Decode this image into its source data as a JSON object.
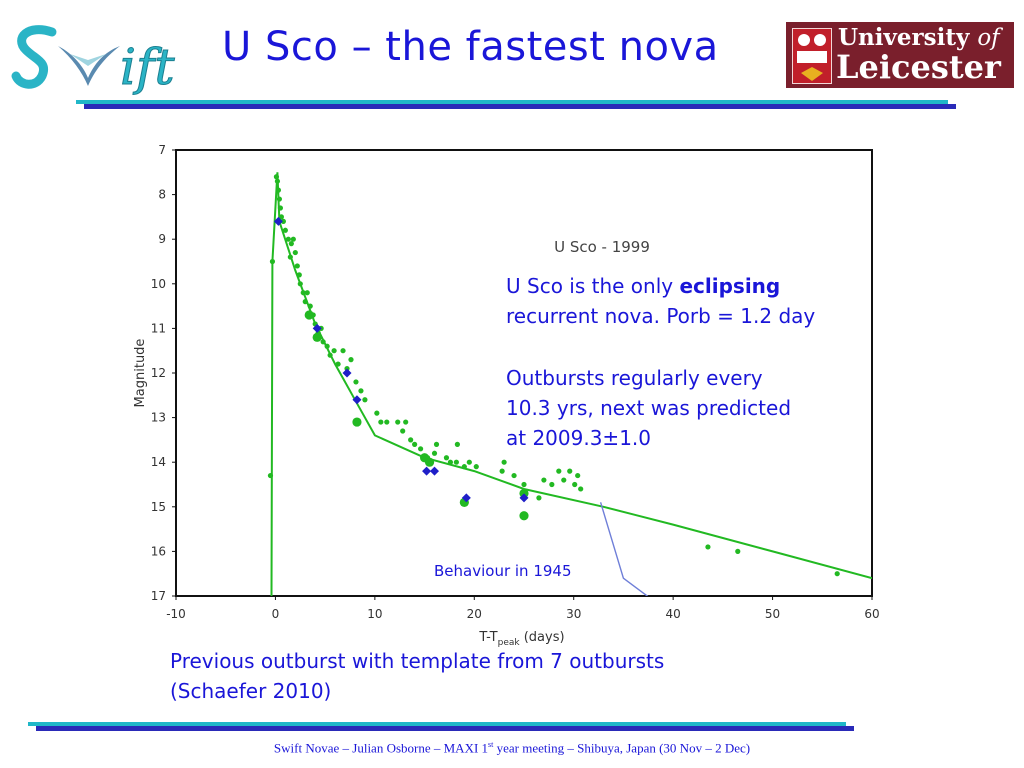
{
  "header": {
    "title": "U Sco – the fastest nova",
    "swift_logo_text": "Swift",
    "university_logo": {
      "line1": "University",
      "line1_of": "of",
      "line2": "Leicester"
    }
  },
  "info": {
    "para1_pre": "U Sco is the only ",
    "para1_bold": "eclipsing",
    "para1_post": "recurrent nova. Porb = 1.2 day",
    "para2_line1": "Outbursts regularly every",
    "para2_line2": "10.3 yrs, next was predicted",
    "para2_line3": "at 2009.3±1.0"
  },
  "caption": {
    "line1": "Previous outburst with template from 7 outbursts",
    "line2": "(Schaefer 2010)"
  },
  "footer": {
    "text_pre": "Swift Novae – Julian Osborne – MAXI 1",
    "text_sup": "st",
    "text_post": " year meeting – Shibuya, Japan (30 Nov – 2 Dec)"
  },
  "colors": {
    "text_blue": "#1a16d8",
    "green": "#22b922",
    "diamond_blue": "#1f1fc8",
    "line_1945": "#6f7fd8",
    "rule_cyan": "#20b7c8",
    "rule_blue": "#2a2ab8"
  },
  "chart_data": {
    "type": "scatter",
    "title": "U Sco - 1999",
    "xlabel": "T-T",
    "xlabel_sub": "peak",
    "xlabel_suffix": " (days)",
    "ylabel": "Magnitude",
    "xlim": [
      -10,
      60
    ],
    "ylim": [
      17,
      7
    ],
    "y_inverted": true,
    "x_ticks": [
      -10,
      0,
      10,
      20,
      30,
      40,
      50,
      60
    ],
    "y_ticks": [
      7,
      8,
      9,
      10,
      11,
      12,
      13,
      14,
      15,
      16,
      17
    ],
    "annotation": "Behaviour in 1945",
    "series": [
      {
        "kind": "small_points",
        "color": "#22b922",
        "points": [
          [
            -0.3,
            9.5
          ],
          [
            -0.5,
            14.3
          ],
          [
            0.1,
            7.6
          ],
          [
            0.2,
            7.7
          ],
          [
            0.3,
            7.9
          ],
          [
            0.4,
            8.1
          ],
          [
            0.5,
            8.3
          ],
          [
            0.6,
            8.5
          ],
          [
            0.8,
            8.6
          ],
          [
            1.0,
            8.8
          ],
          [
            1.3,
            9.0
          ],
          [
            1.6,
            9.1
          ],
          [
            1.8,
            9.0
          ],
          [
            2.0,
            9.3
          ],
          [
            1.5,
            9.4
          ],
          [
            2.2,
            9.6
          ],
          [
            2.4,
            9.8
          ],
          [
            2.5,
            10.0
          ],
          [
            2.8,
            10.2
          ],
          [
            3.0,
            10.4
          ],
          [
            3.2,
            10.2
          ],
          [
            3.5,
            10.5
          ],
          [
            3.8,
            10.7
          ],
          [
            4.0,
            10.9
          ],
          [
            4.3,
            11.1
          ],
          [
            4.6,
            11.0
          ],
          [
            4.8,
            11.3
          ],
          [
            5.2,
            11.4
          ],
          [
            5.5,
            11.6
          ],
          [
            5.9,
            11.5
          ],
          [
            6.3,
            11.8
          ],
          [
            6.8,
            11.5
          ],
          [
            7.2,
            11.9
          ],
          [
            7.6,
            11.7
          ],
          [
            8.1,
            12.2
          ],
          [
            8.6,
            12.4
          ],
          [
            9.0,
            12.6
          ],
          [
            10.2,
            12.9
          ],
          [
            10.6,
            13.1
          ],
          [
            11.2,
            13.1
          ],
          [
            12.3,
            13.1
          ],
          [
            12.8,
            13.3
          ],
          [
            13.1,
            13.1
          ],
          [
            13.6,
            13.5
          ],
          [
            14.0,
            13.6
          ],
          [
            14.6,
            13.7
          ],
          [
            15.3,
            13.9
          ],
          [
            16.0,
            13.8
          ],
          [
            16.2,
            13.6
          ],
          [
            17.2,
            13.9
          ],
          [
            17.6,
            14.0
          ],
          [
            18.2,
            14.0
          ],
          [
            19.0,
            14.1
          ],
          [
            19.5,
            14.0
          ],
          [
            18.3,
            13.6
          ],
          [
            20.2,
            14.1
          ],
          [
            22.8,
            14.2
          ],
          [
            23.0,
            14.0
          ],
          [
            24.0,
            14.3
          ],
          [
            25.0,
            14.5
          ],
          [
            26.5,
            14.8
          ],
          [
            27.0,
            14.4
          ],
          [
            27.8,
            14.5
          ],
          [
            28.5,
            14.2
          ],
          [
            29.0,
            14.4
          ],
          [
            29.6,
            14.2
          ],
          [
            30.1,
            14.5
          ],
          [
            30.4,
            14.3
          ],
          [
            30.7,
            14.6
          ],
          [
            43.5,
            15.9
          ],
          [
            46.5,
            16.0
          ],
          [
            56.5,
            16.5
          ]
        ]
      },
      {
        "kind": "big_points",
        "color": "#22b922",
        "points": [
          [
            3.4,
            10.7
          ],
          [
            4.2,
            11.2
          ],
          [
            8.2,
            13.1
          ],
          [
            15.0,
            13.9
          ],
          [
            15.5,
            14.0
          ],
          [
            19.0,
            14.9
          ],
          [
            25.0,
            14.7
          ],
          [
            25.0,
            15.2
          ]
        ]
      },
      {
        "kind": "diamonds",
        "color": "#1f1fc8",
        "points": [
          [
            0.3,
            8.6
          ],
          [
            4.2,
            11.0
          ],
          [
            7.2,
            12.0
          ],
          [
            8.2,
            12.6
          ],
          [
            15.2,
            14.2
          ],
          [
            16.0,
            14.2
          ],
          [
            19.2,
            14.8
          ],
          [
            25.0,
            14.8
          ]
        ]
      },
      {
        "kind": "template_line",
        "color": "#22b922",
        "points": [
          [
            -0.4,
            17.0
          ],
          [
            -0.3,
            9.5
          ],
          [
            0.2,
            7.5
          ],
          [
            0.4,
            8.6
          ],
          [
            2.0,
            9.7
          ],
          [
            4.0,
            10.9
          ],
          [
            6.0,
            11.8
          ],
          [
            8.0,
            12.6
          ],
          [
            10.0,
            13.4
          ],
          [
            15.0,
            13.9
          ],
          [
            20.0,
            14.2
          ],
          [
            25.0,
            14.6
          ],
          [
            33.0,
            15.0
          ],
          [
            40.0,
            15.4
          ],
          [
            50.0,
            16.0
          ],
          [
            60.0,
            16.6
          ]
        ]
      },
      {
        "kind": "line_1945",
        "color": "#6f7fd8",
        "points": [
          [
            32.7,
            14.9
          ],
          [
            35.0,
            16.6
          ],
          [
            38.0,
            17.1
          ]
        ]
      }
    ]
  }
}
